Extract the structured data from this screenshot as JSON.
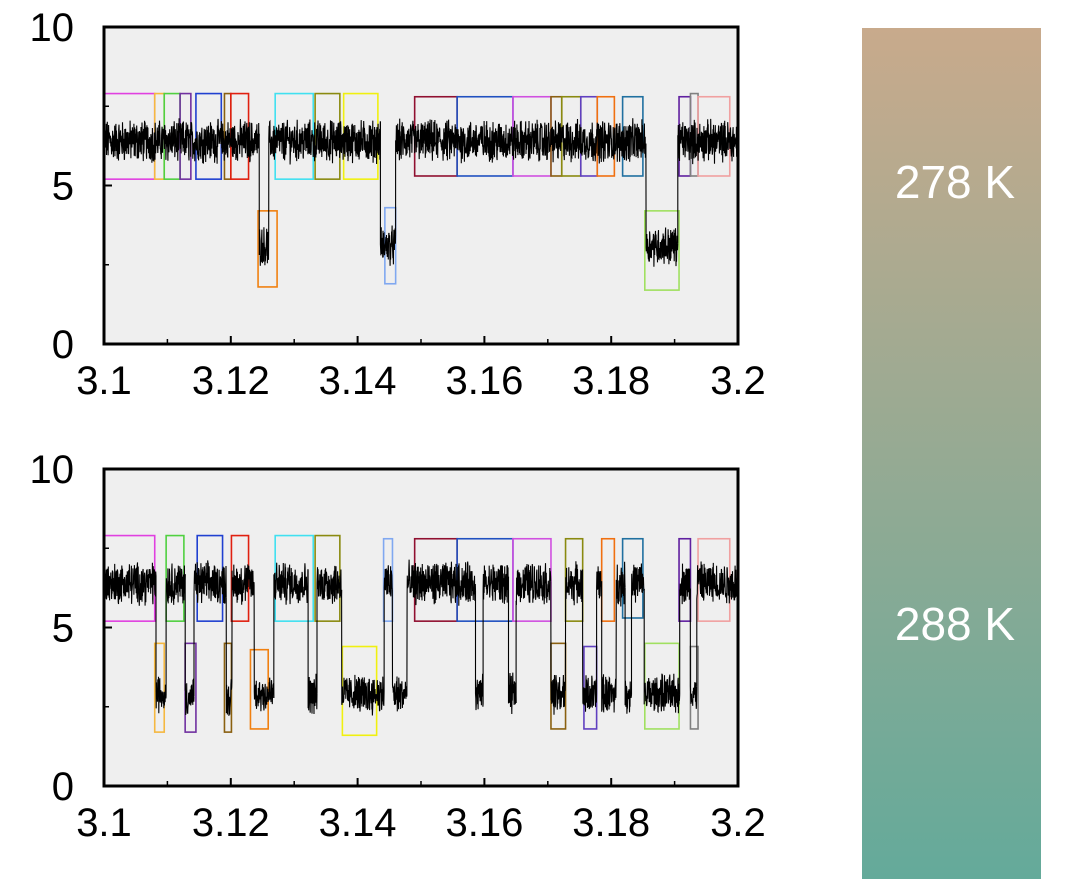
{
  "chart_data": [
    {
      "type": "line",
      "title": "",
      "xlabel": "",
      "ylabel": "",
      "xlim": [
        3.1,
        3.2
      ],
      "ylim": [
        0,
        10
      ],
      "xticks": [
        "3.1",
        "3.12",
        "3.14",
        "3.16",
        "3.18",
        "3.2"
      ],
      "yticks": [
        "0",
        "5",
        "10"
      ],
      "background": "#efefef",
      "trace_color": "#000000",
      "segments": [
        {
          "x0": 3.1,
          "x1": 3.1245,
          "level": 6.4
        },
        {
          "x0": 3.1245,
          "x1": 3.126,
          "level": 3.1
        },
        {
          "x0": 3.126,
          "x1": 3.1436,
          "level": 6.4
        },
        {
          "x0": 3.1436,
          "x1": 3.146,
          "level": 3.1
        },
        {
          "x0": 3.146,
          "x1": 3.1855,
          "level": 6.4
        },
        {
          "x0": 3.1855,
          "x1": 3.1905,
          "level": 3.1
        },
        {
          "x0": 3.1905,
          "x1": 3.2,
          "level": 6.4
        }
      ],
      "annotations": [
        {
          "x0": 3.1,
          "x1": 3.108,
          "y0": 5.2,
          "y1": 7.9,
          "color": "#e040e0"
        },
        {
          "x0": 3.108,
          "x1": 3.1095,
          "y0": 5.2,
          "y1": 7.9,
          "color": "#f5b840"
        },
        {
          "x0": 3.1095,
          "x1": 3.112,
          "y0": 5.2,
          "y1": 7.9,
          "color": "#50d040"
        },
        {
          "x0": 3.112,
          "x1": 3.1137,
          "y0": 5.2,
          "y1": 7.9,
          "color": "#7030a0"
        },
        {
          "x0": 3.1145,
          "x1": 3.1185,
          "y0": 5.2,
          "y1": 7.9,
          "color": "#2040d0"
        },
        {
          "x0": 3.119,
          "x1": 3.12,
          "y0": 5.2,
          "y1": 7.9,
          "color": "#8a6010"
        },
        {
          "x0": 3.12,
          "x1": 3.1228,
          "y0": 5.2,
          "y1": 7.9,
          "color": "#e02010"
        },
        {
          "x0": 3.1243,
          "x1": 3.1273,
          "y0": 1.8,
          "y1": 4.2,
          "color": "#f08010"
        },
        {
          "x0": 3.127,
          "x1": 3.133,
          "y0": 5.2,
          "y1": 7.9,
          "color": "#40e0f0"
        },
        {
          "x0": 3.1333,
          "x1": 3.1372,
          "y0": 5.2,
          "y1": 7.9,
          "color": "#8a8a10"
        },
        {
          "x0": 3.1378,
          "x1": 3.1432,
          "y0": 5.2,
          "y1": 7.9,
          "color": "#f0f010"
        },
        {
          "x0": 3.1443,
          "x1": 3.146,
          "y0": 1.9,
          "y1": 4.3,
          "color": "#80a8f0"
        },
        {
          "x0": 3.149,
          "x1": 3.1557,
          "y0": 5.3,
          "y1": 7.8,
          "color": "#901030"
        },
        {
          "x0": 3.1557,
          "x1": 3.1645,
          "y0": 5.3,
          "y1": 7.8,
          "color": "#2050c0"
        },
        {
          "x0": 3.1645,
          "x1": 3.1705,
          "y0": 5.3,
          "y1": 7.8,
          "color": "#d050e0"
        },
        {
          "x0": 3.1705,
          "x1": 3.1722,
          "y0": 5.3,
          "y1": 7.8,
          "color": "#8a6010"
        },
        {
          "x0": 3.1722,
          "x1": 3.1752,
          "y0": 5.3,
          "y1": 7.8,
          "color": "#8a8a10"
        },
        {
          "x0": 3.1752,
          "x1": 3.1778,
          "y0": 5.3,
          "y1": 7.8,
          "color": "#6040c0"
        },
        {
          "x0": 3.1778,
          "x1": 3.1805,
          "y0": 5.3,
          "y1": 7.8,
          "color": "#f07010"
        },
        {
          "x0": 3.1818,
          "x1": 3.185,
          "y0": 5.3,
          "y1": 7.8,
          "color": "#2070a0"
        },
        {
          "x0": 3.1853,
          "x1": 3.1907,
          "y0": 1.7,
          "y1": 4.2,
          "color": "#a0e060"
        },
        {
          "x0": 3.1907,
          "x1": 3.1925,
          "y0": 5.3,
          "y1": 7.8,
          "color": "#6020a0"
        },
        {
          "x0": 3.1925,
          "x1": 3.1937,
          "y0": 5.3,
          "y1": 7.9,
          "color": "#808080"
        },
        {
          "x0": 3.1937,
          "x1": 3.1987,
          "y0": 5.3,
          "y1": 7.8,
          "color": "#f0a0a0"
        }
      ]
    },
    {
      "type": "line",
      "title": "",
      "xlabel": "",
      "ylabel": "",
      "xlim": [
        3.1,
        3.2
      ],
      "ylim": [
        0,
        10
      ],
      "xticks": [
        "3.1",
        "3.12",
        "3.14",
        "3.16",
        "3.18",
        "3.2"
      ],
      "yticks": [
        "0",
        "5",
        "10"
      ],
      "background": "#efefef",
      "trace_color": "#000000",
      "segments": [
        {
          "x0": 3.1,
          "x1": 3.1082,
          "level": 6.4
        },
        {
          "x0": 3.1082,
          "x1": 3.1098,
          "level": 2.9
        },
        {
          "x0": 3.1098,
          "x1": 3.1128,
          "level": 6.4
        },
        {
          "x0": 3.1128,
          "x1": 3.1142,
          "level": 2.8
        },
        {
          "x0": 3.1142,
          "x1": 3.1193,
          "level": 6.4
        },
        {
          "x0": 3.1193,
          "x1": 3.1202,
          "level": 2.8
        },
        {
          "x0": 3.1202,
          "x1": 3.1237,
          "level": 6.4
        },
        {
          "x0": 3.1237,
          "x1": 3.1268,
          "level": 2.9
        },
        {
          "x0": 3.1268,
          "x1": 3.1322,
          "level": 6.4
        },
        {
          "x0": 3.1322,
          "x1": 3.1336,
          "level": 2.9
        },
        {
          "x0": 3.1336,
          "x1": 3.1375,
          "level": 6.4
        },
        {
          "x0": 3.1375,
          "x1": 3.1442,
          "level": 2.9
        },
        {
          "x0": 3.1442,
          "x1": 3.1455,
          "level": 6.4
        },
        {
          "x0": 3.1455,
          "x1": 3.1478,
          "level": 2.9
        },
        {
          "x0": 3.1478,
          "x1": 3.1586,
          "level": 6.4
        },
        {
          "x0": 3.1586,
          "x1": 3.1598,
          "level": 2.9
        },
        {
          "x0": 3.1598,
          "x1": 3.1638,
          "level": 6.4
        },
        {
          "x0": 3.1638,
          "x1": 3.165,
          "level": 2.9
        },
        {
          "x0": 3.165,
          "x1": 3.1705,
          "level": 6.4
        },
        {
          "x0": 3.1705,
          "x1": 3.1728,
          "level": 2.9
        },
        {
          "x0": 3.1728,
          "x1": 3.1755,
          "level": 6.4
        },
        {
          "x0": 3.1755,
          "x1": 3.1777,
          "level": 2.9
        },
        {
          "x0": 3.1777,
          "x1": 3.1785,
          "level": 6.4
        },
        {
          "x0": 3.1785,
          "x1": 3.1808,
          "level": 2.9
        },
        {
          "x0": 3.1808,
          "x1": 3.1822,
          "level": 6.4
        },
        {
          "x0": 3.1822,
          "x1": 3.1832,
          "level": 2.9
        },
        {
          "x0": 3.1832,
          "x1": 3.1852,
          "level": 6.4
        },
        {
          "x0": 3.1852,
          "x1": 3.1908,
          "level": 2.9
        },
        {
          "x0": 3.1908,
          "x1": 3.1925,
          "level": 6.4
        },
        {
          "x0": 3.1925,
          "x1": 3.1935,
          "level": 2.9
        },
        {
          "x0": 3.1935,
          "x1": 3.2,
          "level": 6.4
        }
      ],
      "annotations": [
        {
          "x0": 3.1,
          "x1": 3.108,
          "y0": 5.2,
          "y1": 7.9,
          "color": "#e040e0"
        },
        {
          "x0": 3.108,
          "x1": 3.1095,
          "y0": 1.7,
          "y1": 4.5,
          "color": "#f5b840"
        },
        {
          "x0": 3.1098,
          "x1": 3.1126,
          "y0": 5.2,
          "y1": 7.9,
          "color": "#50d040"
        },
        {
          "x0": 3.1128,
          "x1": 3.1145,
          "y0": 1.7,
          "y1": 4.5,
          "color": "#7030a0"
        },
        {
          "x0": 3.1147,
          "x1": 3.1187,
          "y0": 5.2,
          "y1": 7.9,
          "color": "#2040d0"
        },
        {
          "x0": 3.119,
          "x1": 3.1201,
          "y0": 1.7,
          "y1": 4.5,
          "color": "#8a6010"
        },
        {
          "x0": 3.1201,
          "x1": 3.1228,
          "y0": 5.2,
          "y1": 7.9,
          "color": "#e02010"
        },
        {
          "x0": 3.1231,
          "x1": 3.1259,
          "y0": 1.8,
          "y1": 4.3,
          "color": "#f08010"
        },
        {
          "x0": 3.127,
          "x1": 3.133,
          "y0": 5.2,
          "y1": 7.9,
          "color": "#40e0f0"
        },
        {
          "x0": 3.1333,
          "x1": 3.1372,
          "y0": 5.2,
          "y1": 7.9,
          "color": "#8a8a10"
        },
        {
          "x0": 3.1376,
          "x1": 3.143,
          "y0": 1.6,
          "y1": 4.4,
          "color": "#f0f010"
        },
        {
          "x0": 3.1441,
          "x1": 3.1455,
          "y0": 5.2,
          "y1": 7.8,
          "color": "#80a8f0"
        },
        {
          "x0": 3.149,
          "x1": 3.1557,
          "y0": 5.2,
          "y1": 7.8,
          "color": "#901030"
        },
        {
          "x0": 3.1557,
          "x1": 3.1645,
          "y0": 5.2,
          "y1": 7.8,
          "color": "#2050c0"
        },
        {
          "x0": 3.1645,
          "x1": 3.1705,
          "y0": 5.2,
          "y1": 7.8,
          "color": "#d050e0"
        },
        {
          "x0": 3.1705,
          "x1": 3.1728,
          "y0": 1.8,
          "y1": 4.5,
          "color": "#8a6010"
        },
        {
          "x0": 3.1728,
          "x1": 3.1755,
          "y0": 5.2,
          "y1": 7.8,
          "color": "#8a8a10"
        },
        {
          "x0": 3.1757,
          "x1": 3.1777,
          "y0": 1.8,
          "y1": 4.4,
          "color": "#6040c0"
        },
        {
          "x0": 3.1785,
          "x1": 3.1805,
          "y0": 5.2,
          "y1": 7.8,
          "color": "#f07010"
        },
        {
          "x0": 3.1818,
          "x1": 3.185,
          "y0": 5.3,
          "y1": 7.8,
          "color": "#2070a0"
        },
        {
          "x0": 3.1853,
          "x1": 3.1907,
          "y0": 1.8,
          "y1": 4.5,
          "color": "#a0e060"
        },
        {
          "x0": 3.1907,
          "x1": 3.1925,
          "y0": 5.2,
          "y1": 7.8,
          "color": "#6020a0"
        },
        {
          "x0": 3.1925,
          "x1": 3.1937,
          "y0": 1.8,
          "y1": 4.4,
          "color": "#808080"
        },
        {
          "x0": 3.1937,
          "x1": 3.1987,
          "y0": 5.2,
          "y1": 7.8,
          "color": "#f0a0a0"
        }
      ]
    }
  ],
  "colorbar": {
    "top_color": "#c8aa8c",
    "bottom_color": "#64aa9a",
    "labels": [
      "278 K",
      "288 K"
    ]
  }
}
